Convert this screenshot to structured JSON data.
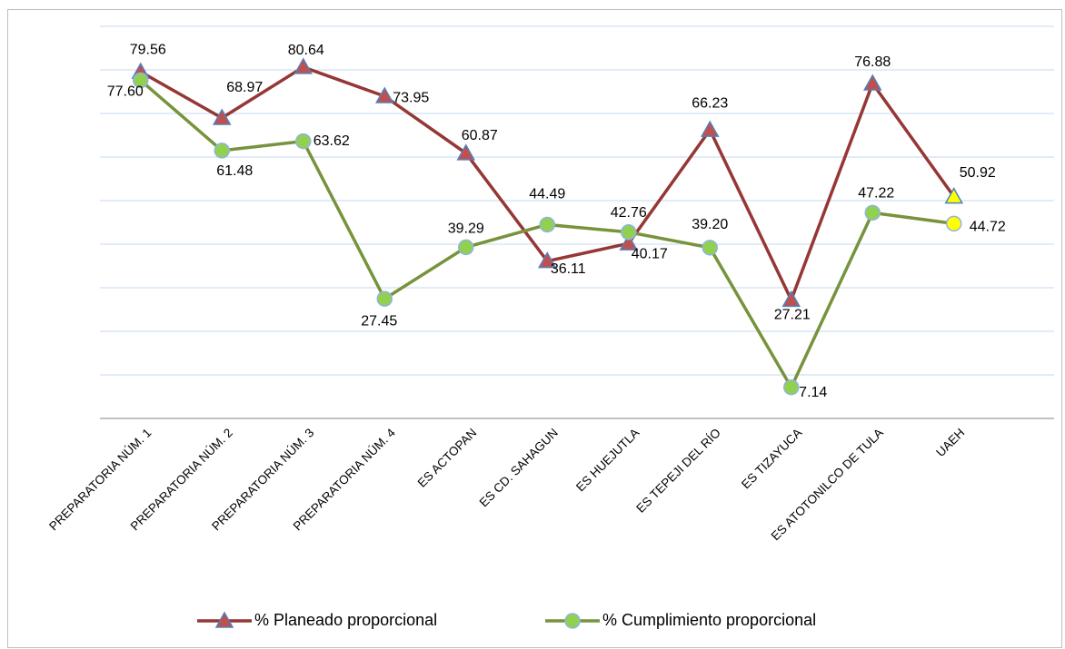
{
  "chart_data": {
    "type": "line",
    "categories": [
      "PREPARATORIA NÚM. 1",
      "PREPARATORIA NÚM. 2",
      "PREPARATORIA NÚM. 3",
      "PREPARATORIA NÚM. 4",
      "ES ACTOPAN",
      "ES CD. SAHAGUN",
      "ES HUEJUTLA",
      "ES TEPEJI DEL RÍO",
      "ES TIZAYUCA",
      "ES ATOTONILCO DE TULA",
      "UAEH"
    ],
    "series": [
      {
        "name": "% Planeado proporcional",
        "color": "#953735",
        "marker": "triangle",
        "marker_color": "#c0504d",
        "marker_edge_color": "#4f81bd",
        "last_marker_color": "#ffff00",
        "values": [
          79.56,
          68.97,
          80.64,
          73.95,
          60.87,
          36.11,
          40.17,
          66.23,
          27.21,
          76.88,
          50.92
        ],
        "value_labels": [
          "79.56",
          "68.97",
          "80.64",
          "73.95",
          "60.87",
          "36.11",
          "40.17",
          "66.23",
          "27.21",
          "76.88",
          "50.92"
        ]
      },
      {
        "name": "% Cumplimiento proporcional",
        "color": "#77933c",
        "marker": "circle",
        "marker_color": "#92d050",
        "marker_edge_color": "#8eb4e3",
        "last_marker_color": "#ffff00",
        "values": [
          77.6,
          61.48,
          63.62,
          27.45,
          39.29,
          44.49,
          42.76,
          39.2,
          7.14,
          47.22,
          44.72
        ],
        "value_labels": [
          "77.60",
          "61.48",
          "63.62",
          "27.45",
          "39.29",
          "44.49",
          "42.76",
          "39.20",
          "7.14",
          "47.22",
          "44.72"
        ]
      }
    ],
    "ylim": [
      0,
      90
    ],
    "yticks": [
      0,
      10,
      20,
      30,
      40,
      50,
      60,
      70,
      80,
      90
    ],
    "grid": true,
    "legend": "bottom"
  }
}
